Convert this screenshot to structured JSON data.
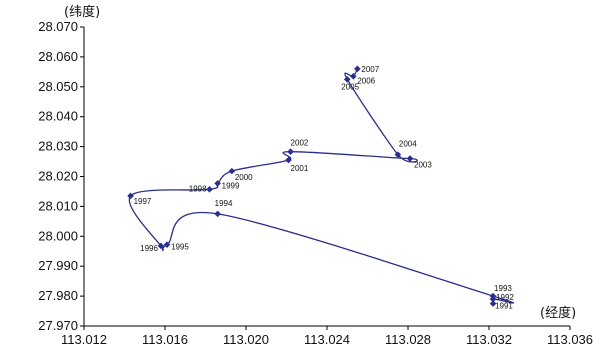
{
  "chart_data": {
    "type": "line",
    "title": "",
    "xlabel": "(经度)",
    "ylabel": "(纬度)",
    "xlim": [
      113.012,
      113.036
    ],
    "ylim": [
      27.97,
      28.07
    ],
    "xticks": [
      "113.012",
      "113.016",
      "113.020",
      "113.024",
      "113.028",
      "113.032",
      "113.036"
    ],
    "yticks": [
      "27.970",
      "27.980",
      "27.990",
      "28.000",
      "28.010",
      "28.020",
      "28.030",
      "28.040",
      "28.050",
      "28.060",
      "28.070"
    ],
    "grid": false,
    "line_color": "#2a2e8c",
    "series": [
      {
        "points": [
          {
            "label": "1991",
            "x": 113.0322,
            "y": 27.9775
          },
          {
            "label": "1992",
            "x": 113.0322,
            "y": 27.979
          },
          {
            "label": "1993",
            "x": 113.0322,
            "y": 27.98
          },
          {
            "label": "1994",
            "x": 113.0186,
            "y": 28.0075
          },
          {
            "label": "1995",
            "x": 113.0161,
            "y": 27.9972
          },
          {
            "label": "1996",
            "x": 113.0158,
            "y": 27.9968
          },
          {
            "label": "1997",
            "x": 113.0143,
            "y": 28.0135
          },
          {
            "label": "1998",
            "x": 113.0182,
            "y": 28.0157
          },
          {
            "label": "1999",
            "x": 113.0186,
            "y": 28.0177
          },
          {
            "label": "2000",
            "x": 113.0193,
            "y": 28.0218
          },
          {
            "label": "2001",
            "x": 113.0221,
            "y": 28.0255
          },
          {
            "label": "2002",
            "x": 113.0222,
            "y": 28.0283
          },
          {
            "label": "2003",
            "x": 113.0281,
            "y": 28.026
          },
          {
            "label": "2004",
            "x": 113.0275,
            "y": 28.0273
          },
          {
            "label": "2005",
            "x": 113.025,
            "y": 28.0525
          },
          {
            "label": "2006",
            "x": 113.0253,
            "y": 28.0535
          },
          {
            "label": "2007",
            "x": 113.0255,
            "y": 28.056
          }
        ]
      }
    ]
  }
}
